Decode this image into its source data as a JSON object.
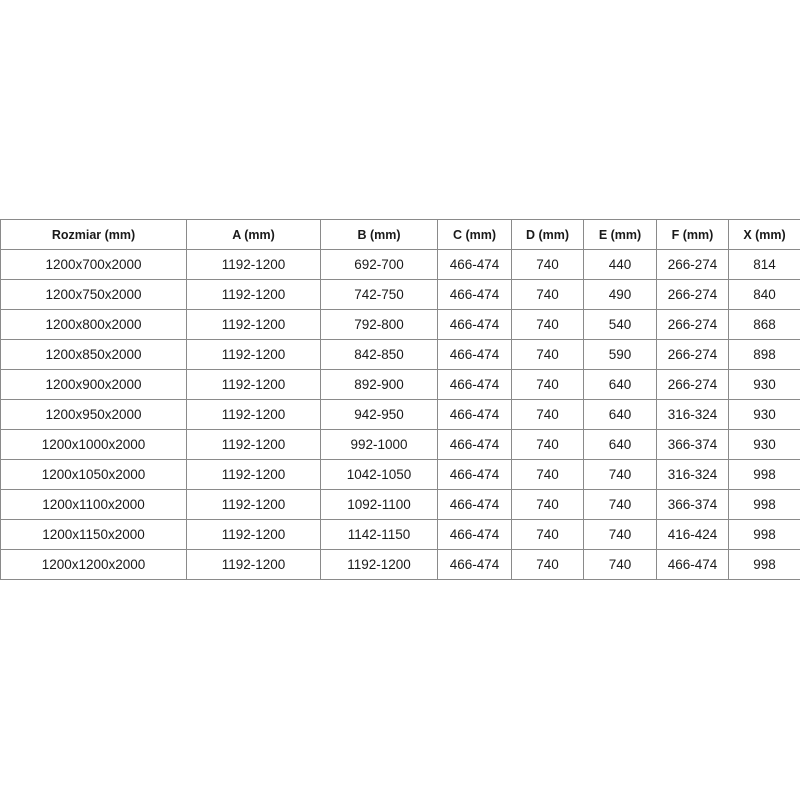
{
  "table": {
    "headers": [
      "Rozmiar (mm)",
      "A (mm)",
      "B (mm)",
      "C (mm)",
      "D (mm)",
      "E (mm)",
      "F (mm)",
      "X (mm)"
    ],
    "rows": [
      [
        "1200x700x2000",
        "1192-1200",
        "692-700",
        "466-474",
        "740",
        "440",
        "266-274",
        "814"
      ],
      [
        "1200x750x2000",
        "1192-1200",
        "742-750",
        "466-474",
        "740",
        "490",
        "266-274",
        "840"
      ],
      [
        "1200x800x2000",
        "1192-1200",
        "792-800",
        "466-474",
        "740",
        "540",
        "266-274",
        "868"
      ],
      [
        "1200x850x2000",
        "1192-1200",
        "842-850",
        "466-474",
        "740",
        "590",
        "266-274",
        "898"
      ],
      [
        "1200x900x2000",
        "1192-1200",
        "892-900",
        "466-474",
        "740",
        "640",
        "266-274",
        "930"
      ],
      [
        "1200x950x2000",
        "1192-1200",
        "942-950",
        "466-474",
        "740",
        "640",
        "316-324",
        "930"
      ],
      [
        "1200x1000x2000",
        "1192-1200",
        "992-1000",
        "466-474",
        "740",
        "640",
        "366-374",
        "930"
      ],
      [
        "1200x1050x2000",
        "1192-1200",
        "1042-1050",
        "466-474",
        "740",
        "740",
        "316-324",
        "998"
      ],
      [
        "1200x1100x2000",
        "1192-1200",
        "1092-1100",
        "466-474",
        "740",
        "740",
        "366-374",
        "998"
      ],
      [
        "1200x1150x2000",
        "1192-1200",
        "1142-1150",
        "466-474",
        "740",
        "740",
        "416-424",
        "998"
      ],
      [
        "1200x1200x2000",
        "1192-1200",
        "1192-1200",
        "466-474",
        "740",
        "740",
        "466-474",
        "998"
      ]
    ]
  }
}
